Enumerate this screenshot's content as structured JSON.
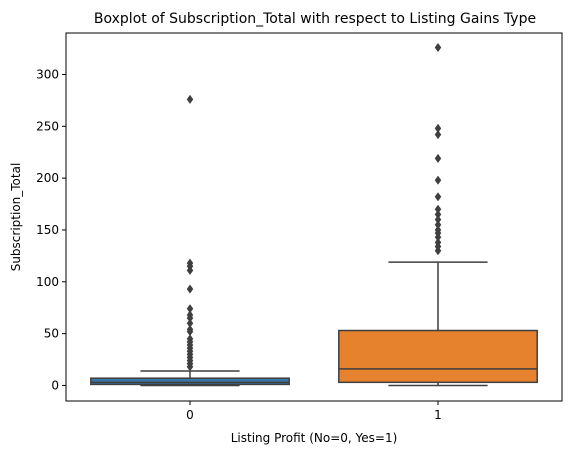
{
  "chart_data": {
    "type": "boxplot",
    "title": "Boxplot of Subscription_Total with respect to Listing Gains Type",
    "xlabel": "Listing Profit (No=0, Yes=1)",
    "ylabel": "Subscription_Total",
    "categories": [
      "0",
      "1"
    ],
    "ylim": [
      -15,
      340
    ],
    "yticks": [
      0,
      50,
      100,
      150,
      200,
      250,
      300
    ],
    "grid": false,
    "series": [
      {
        "category": "0",
        "color": "#3a75a8",
        "whisker_low": 0,
        "q1": 1,
        "median": 3,
        "q3": 7,
        "whisker_high": 14,
        "outliers": [
          18,
          21,
          24,
          27,
          30,
          33,
          36,
          39,
          42,
          45,
          52,
          54,
          60,
          65,
          68,
          74,
          93,
          111,
          115,
          118,
          276
        ]
      },
      {
        "category": "1",
        "color": "#e6812e",
        "whisker_low": 0,
        "q1": 3,
        "median": 16,
        "q3": 53,
        "whisker_high": 119,
        "outliers": [
          130,
          134,
          138,
          143,
          147,
          150,
          155,
          160,
          165,
          170,
          182,
          198,
          219,
          242,
          248,
          326
        ]
      }
    ]
  }
}
